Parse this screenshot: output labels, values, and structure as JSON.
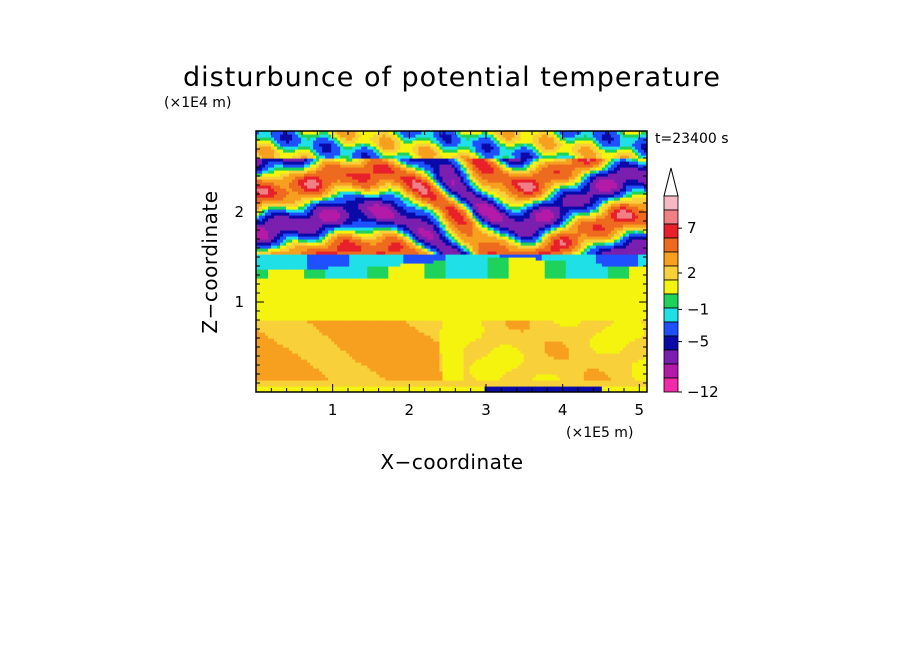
{
  "chart_data": {
    "type": "heatmap",
    "title": "disturbunce of potential temperature",
    "time_label": "t=23400 s",
    "xlabel": "X−coordinate",
    "ylabel": "Z−coordinate",
    "x_unit": "(×1E5 m)",
    "y_unit": "(×1E4 m)",
    "xlim": [
      0,
      5.1
    ],
    "ylim": [
      0,
      2.9
    ],
    "x_ticks": [
      "1",
      "2",
      "3",
      "4",
      "5"
    ],
    "x_tick_values": [
      1,
      2,
      3,
      4,
      5
    ],
    "y_ticks": [
      "1",
      "2"
    ],
    "y_tick_values": [
      1,
      2
    ],
    "colorbar": {
      "labels": [
        "7",
        "2",
        "−1",
        "−5",
        "−12"
      ],
      "colors": [
        "#f5b8c4",
        "#f07f86",
        "#e8202a",
        "#ee6a1f",
        "#f7a020",
        "#f8d13a",
        "#f4f40f",
        "#1ed35b",
        "#1fe0e6",
        "#1e50ff",
        "#0a0aa8",
        "#7a1fb0",
        "#b41aa8",
        "#f02aa8"
      ]
    }
  }
}
